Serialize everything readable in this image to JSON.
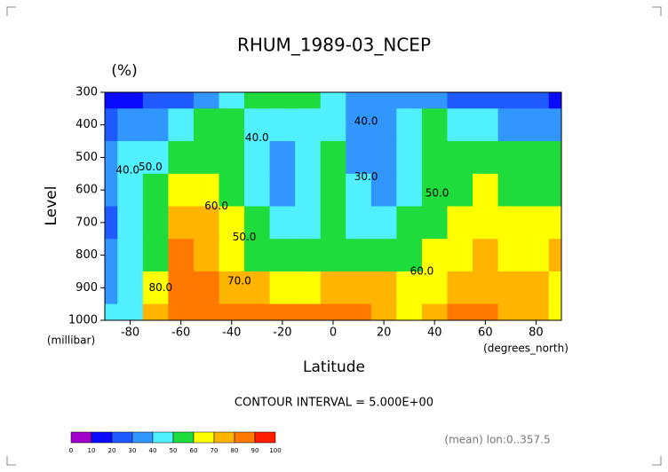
{
  "chart_data": {
    "type": "contour",
    "title": "RHUM_1989-03_NCEP",
    "units": "(%)",
    "ylabel": "Level",
    "yunits": "(millibar)",
    "xlabel": "Latitude",
    "xunits": "(degrees_north)",
    "contour_interval": "CONTOUR INTERVAL = 5.000E+00",
    "note": "(mean) lon:0..357.5",
    "x": [
      -90,
      -80,
      -70,
      -60,
      -50,
      -40,
      -30,
      -20,
      -10,
      0,
      10,
      20,
      30,
      40,
      50,
      60,
      70,
      80,
      90
    ],
    "y": [
      300,
      400,
      500,
      600,
      700,
      800,
      900,
      1000
    ],
    "z": [
      [
        10,
        15,
        20,
        25,
        35,
        45,
        50,
        50,
        55,
        45,
        35,
        30,
        35,
        30,
        25,
        25,
        20,
        20,
        15
      ],
      [
        25,
        30,
        30,
        40,
        50,
        50,
        45,
        40,
        45,
        45,
        35,
        35,
        45,
        50,
        45,
        40,
        35,
        35,
        30
      ],
      [
        30,
        40,
        45,
        55,
        55,
        50,
        40,
        35,
        45,
        50,
        30,
        30,
        45,
        50,
        55,
        55,
        55,
        55,
        55
      ],
      [
        35,
        40,
        50,
        65,
        60,
        55,
        40,
        35,
        40,
        50,
        40,
        35,
        45,
        50,
        55,
        60,
        55,
        55,
        55
      ],
      [
        25,
        40,
        55,
        70,
        70,
        60,
        50,
        40,
        40,
        50,
        45,
        40,
        50,
        55,
        60,
        65,
        60,
        60,
        65
      ],
      [
        35,
        40,
        55,
        80,
        75,
        65,
        55,
        50,
        50,
        55,
        55,
        50,
        55,
        60,
        65,
        70,
        65,
        65,
        70
      ],
      [
        35,
        45,
        60,
        85,
        80,
        75,
        70,
        65,
        65,
        70,
        75,
        70,
        60,
        65,
        75,
        75,
        70,
        70,
        65
      ],
      [
        40,
        45,
        70,
        85,
        80,
        80,
        80,
        80,
        80,
        80,
        80,
        75,
        60,
        70,
        80,
        80,
        70,
        70,
        65
      ]
    ],
    "xlim": [
      -90,
      90
    ],
    "ylim": [
      300,
      1000
    ],
    "y_reversed": true,
    "xticks": [
      -80,
      -60,
      -40,
      -20,
      0,
      20,
      40,
      60,
      80
    ],
    "yticks": [
      300,
      400,
      500,
      600,
      700,
      800,
      900,
      1000
    ],
    "contour_labels": [
      {
        "text": "40.0",
        "lat": -81,
        "level": 540
      },
      {
        "text": "50.0",
        "lat": -72,
        "level": 530
      },
      {
        "text": "40.0",
        "lat": -30,
        "level": 440
      },
      {
        "text": "40.0",
        "lat": 13,
        "level": 390
      },
      {
        "text": "30.0",
        "lat": 13,
        "level": 560
      },
      {
        "text": "50.0",
        "lat": 41,
        "level": 610
      },
      {
        "text": "60.0",
        "lat": -46,
        "level": 650
      },
      {
        "text": "50.0",
        "lat": -35,
        "level": 745
      },
      {
        "text": "70.0",
        "lat": -37,
        "level": 880
      },
      {
        "text": "80.0",
        "lat": -68,
        "level": 900
      },
      {
        "text": "60.0",
        "lat": 35,
        "level": 850
      }
    ],
    "colorbar": {
      "levels": [
        0,
        10,
        20,
        30,
        40,
        50,
        60,
        70,
        80,
        90,
        100
      ],
      "colors": [
        "#a000c8",
        "#0a0aff",
        "#1e5aff",
        "#3296ff",
        "#50f0ff",
        "#1edc3c",
        "#ffff00",
        "#ffb400",
        "#ff7800",
        "#ff1e00"
      ]
    }
  }
}
